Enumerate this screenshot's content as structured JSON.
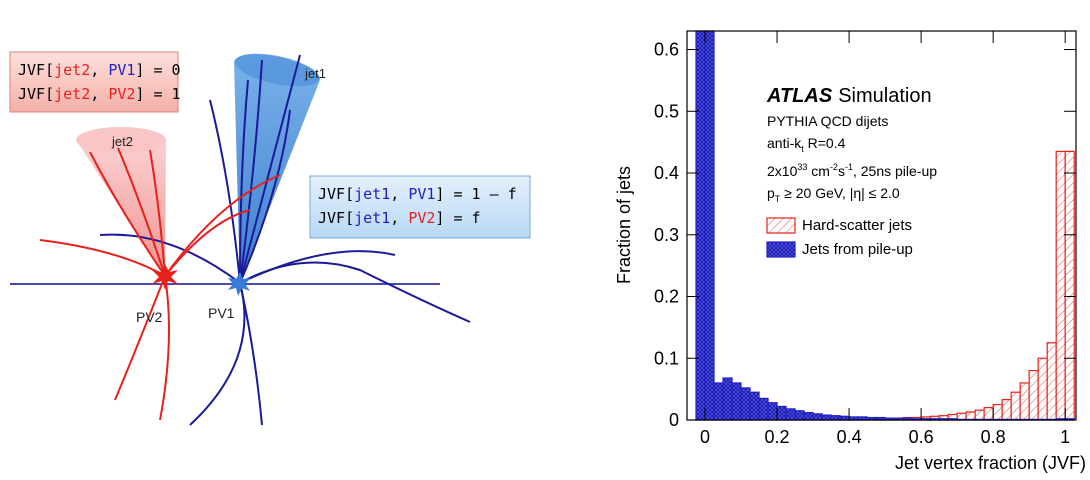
{
  "diagram": {
    "boxes": [
      {
        "lines": [
          [
            "JVF[",
            "jet2",
            ", ",
            "PV1",
            "] = 0"
          ],
          [
            "JVF[",
            "jet2",
            ", ",
            "PV2",
            "] = 1"
          ]
        ]
      },
      {
        "lines": [
          [
            "JVF[",
            "jet1",
            ", ",
            "PV1",
            "] = 1 – f"
          ],
          [
            "JVF[",
            "jet1",
            ", ",
            "PV2",
            "] = f"
          ]
        ]
      }
    ],
    "labels": [
      "jet1",
      "jet2",
      "PV1",
      "PV2"
    ]
  },
  "chart_data": {
    "type": "histogram",
    "x_label": "Jet vertex fraction (JVF)",
    "y_label": "Fraction of jets",
    "annotations": {
      "experiment": "ATLAS",
      "status": "Simulation",
      "sample": "PYTHIA QCD dijets",
      "algorithm": [
        "anti-k",
        "t",
        " R=0.4"
      ],
      "luminosity": [
        "2x10",
        "33",
        " cm",
        "-2",
        "s",
        "-1",
        ", 25ns pile-up"
      ],
      "cuts": [
        "p",
        "T",
        " ≥ 20 GeV, |η| ≤ 2.0"
      ]
    },
    "bins": [
      -0.025,
      0,
      0.025,
      0.05,
      0.075,
      0.1,
      0.125,
      0.15,
      0.175,
      0.2,
      0.225,
      0.25,
      0.275,
      0.3,
      0.325,
      0.35,
      0.375,
      0.4,
      0.425,
      0.45,
      0.475,
      0.5,
      0.525,
      0.55,
      0.575,
      0.6,
      0.625,
      0.65,
      0.675,
      0.7,
      0.725,
      0.75,
      0.775,
      0.8,
      0.825,
      0.85,
      0.875,
      0.9,
      0.925,
      0.95,
      0.975,
      1,
      1.025
    ],
    "series": [
      {
        "name": "Hard-scatter jets",
        "color": "#e8201c",
        "values": [
          0.002,
          0.002,
          0.002,
          0.002,
          0.002,
          0.002,
          0.002,
          0.002,
          0.002,
          0.002,
          0.002,
          0.002,
          0.002,
          0.002,
          0.002,
          0.002,
          0.003,
          0.003,
          0.003,
          0.003,
          0.003,
          0.003,
          0.003,
          0.004,
          0.004,
          0.005,
          0.006,
          0.007,
          0.009,
          0.011,
          0.013,
          0.016,
          0.02,
          0.025,
          0.033,
          0.045,
          0.06,
          0.08,
          0.1,
          0.125,
          0.435,
          0.435
        ]
      },
      {
        "name": "Jets from pile-up",
        "color": "#2020c8",
        "values": [
          0.63,
          0.63,
          0.06,
          0.068,
          0.06,
          0.052,
          0.045,
          0.035,
          0.028,
          0.022,
          0.018,
          0.015,
          0.012,
          0.01,
          0.008,
          0.007,
          0.006,
          0.005,
          0.005,
          0.004,
          0.004,
          0.003,
          0.003,
          0.003,
          0.002,
          0.002,
          0.002,
          0.002,
          0.002,
          0.001,
          0.001,
          0.001,
          0.001,
          0.001,
          0.001,
          0.001,
          0.001,
          0.001,
          0.001,
          0.001,
          0.002,
          0.002
        ]
      }
    ],
    "xlim": [
      -0.05,
      1.03
    ],
    "ylim": [
      0,
      0.63
    ],
    "xticks": [
      0,
      0.2,
      0.4,
      0.6,
      0.8,
      1
    ],
    "yticks": [
      0,
      0.1,
      0.2,
      0.3,
      0.4,
      0.5,
      0.6
    ]
  }
}
